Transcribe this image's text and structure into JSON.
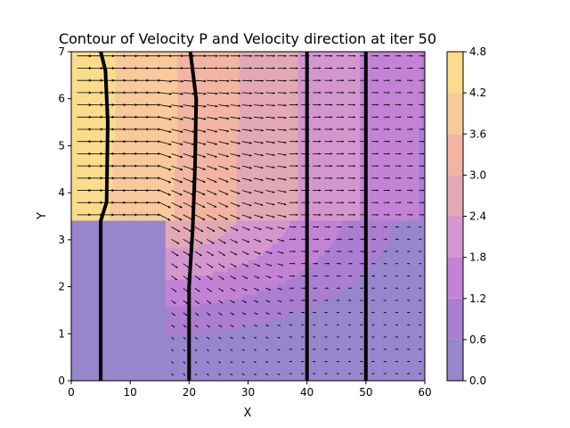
{
  "chart_data": {
    "type": "contour",
    "title": "Contour of Velocity P and Velocity direction at iter 50",
    "xlabel": "X",
    "ylabel": "Y",
    "xlim": [
      0,
      60
    ],
    "ylim": [
      0,
      7
    ],
    "x_ticks": [
      "0",
      "10",
      "20",
      "30",
      "40",
      "50",
      "60"
    ],
    "y_ticks": [
      "0",
      "1",
      "2",
      "3",
      "4",
      "5",
      "6",
      "7"
    ],
    "grid": false,
    "contour_levels": [
      0.0,
      0.6,
      1.2,
      1.8,
      2.4,
      3.0,
      3.6,
      4.2,
      4.8
    ],
    "colorbar_ticks": [
      "0.0",
      "0.6",
      "1.2",
      "1.8",
      "2.4",
      "3.0",
      "3.6",
      "4.2",
      "4.8"
    ],
    "level_colors": [
      "#9786cb",
      "#ab7ed1",
      "#c283d5",
      "#d496ce",
      "#e3a8b6",
      "#f1b5a1",
      "#f8c99a",
      "#fbdc8c"
    ],
    "obstacle_step": {
      "x_max": 16,
      "y_max": 3.4
    },
    "black_lines": [
      {
        "points": [
          [
            5,
            0
          ],
          [
            5,
            3.4
          ],
          [
            6,
            3.8
          ],
          [
            6.2,
            5.5
          ],
          [
            5.8,
            6.6
          ],
          [
            5,
            7
          ]
        ]
      },
      {
        "points": [
          [
            20,
            0
          ],
          [
            20,
            2.0
          ],
          [
            20.6,
            3.2
          ],
          [
            21,
            4.5
          ],
          [
            21.2,
            6.0
          ],
          [
            20.2,
            7
          ]
        ]
      },
      {
        "points": [
          [
            40,
            0
          ],
          [
            40,
            7
          ]
        ]
      },
      {
        "points": [
          [
            50,
            0
          ],
          [
            50,
            7
          ]
        ]
      }
    ],
    "quiver": "velocity direction arrows"
  }
}
